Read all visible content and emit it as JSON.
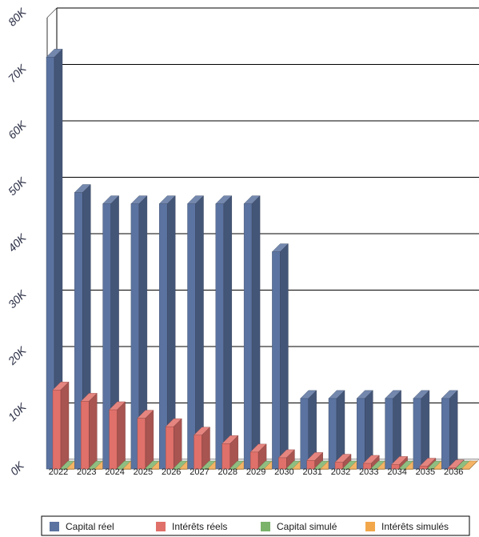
{
  "chart_data": {
    "type": "bar",
    "categories": [
      "2022",
      "2023",
      "2024",
      "2025",
      "2026",
      "2027",
      "2028",
      "2029",
      "2030",
      "2031",
      "2032",
      "2033",
      "2034",
      "2035",
      "2036"
    ],
    "series": [
      {
        "name": "Capital réel",
        "color": "#5b73a0",
        "values": [
          73000,
          49000,
          47000,
          47000,
          47000,
          47000,
          47000,
          47000,
          38500,
          12500,
          12500,
          12500,
          12500,
          12500,
          12500
        ]
      },
      {
        "name": "Intérêts réels",
        "color": "#e0706a",
        "values": [
          14000,
          12000,
          10500,
          9000,
          7500,
          6000,
          4500,
          3000,
          2000,
          1500,
          1200,
          1000,
          800,
          500,
          200
        ]
      },
      {
        "name": "Capital simulé",
        "color": "#7bb36b",
        "values": [
          0,
          0,
          0,
          0,
          0,
          0,
          0,
          0,
          0,
          0,
          0,
          0,
          0,
          0,
          0
        ]
      },
      {
        "name": "Intérêts simulés",
        "color": "#f2a74b",
        "values": [
          0,
          0,
          0,
          0,
          0,
          0,
          0,
          0,
          0,
          0,
          0,
          0,
          0,
          0,
          0
        ]
      }
    ],
    "yticks": [
      "0K",
      "10K",
      "20K",
      "30K",
      "40K",
      "50K",
      "60K",
      "70K",
      "80K"
    ],
    "ylim": [
      0,
      80000
    ],
    "grid": true,
    "legend": "bottom",
    "style": "3d"
  }
}
